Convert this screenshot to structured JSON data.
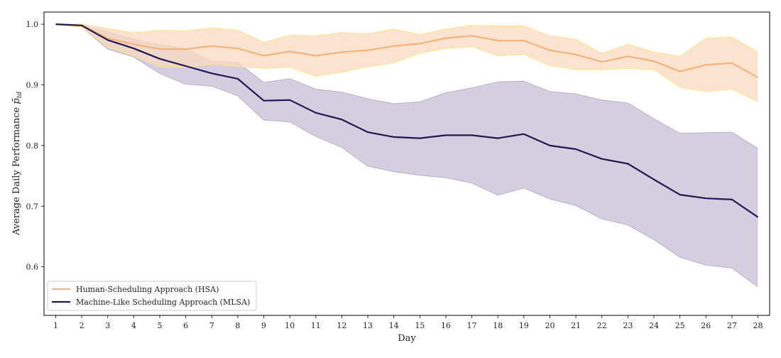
{
  "chart_data": {
    "type": "line",
    "xlabel": "Day",
    "ylabel": "Average Daily Performance",
    "ylabel_math": "p̄",
    "ylabel_sub": "td",
    "x": [
      1,
      2,
      3,
      4,
      5,
      6,
      7,
      8,
      9,
      10,
      11,
      12,
      13,
      14,
      15,
      16,
      17,
      18,
      19,
      20,
      21,
      22,
      23,
      24,
      25,
      26,
      27,
      28
    ],
    "xlim": [
      0.55,
      28.45
    ],
    "ylim": [
      0.52,
      1.02
    ],
    "yticks": [
      0.6,
      0.7,
      0.8,
      0.9,
      1.0
    ],
    "ytick_labels": [
      "0.6",
      "0.7",
      "0.8",
      "0.9",
      "1.0"
    ],
    "grid": false,
    "legend_position": "lower-left",
    "series": [
      {
        "name": "Human-Scheduling Approach (HSA)",
        "color": "#f7b27a",
        "band_fill": "#fbd9bf",
        "band_edge": "#fce48a",
        "values": [
          1.0,
          0.998,
          0.977,
          0.967,
          0.959,
          0.959,
          0.964,
          0.96,
          0.948,
          0.955,
          0.948,
          0.954,
          0.957,
          0.964,
          0.968,
          0.977,
          0.981,
          0.973,
          0.973,
          0.957,
          0.95,
          0.938,
          0.947,
          0.939,
          0.922,
          0.933,
          0.936,
          0.912
        ],
        "lower": [
          1.0,
          0.995,
          0.962,
          0.948,
          0.93,
          0.929,
          0.934,
          0.93,
          0.927,
          0.929,
          0.914,
          0.921,
          0.93,
          0.936,
          0.952,
          0.96,
          0.963,
          0.948,
          0.95,
          0.932,
          0.925,
          0.925,
          0.927,
          0.925,
          0.896,
          0.889,
          0.893,
          0.872
        ],
        "upper": [
          1.0,
          1.0,
          0.993,
          0.986,
          0.99,
          0.989,
          0.994,
          0.99,
          0.97,
          0.982,
          0.981,
          0.986,
          0.984,
          0.992,
          0.983,
          0.992,
          0.998,
          0.997,
          0.997,
          0.981,
          0.975,
          0.952,
          0.967,
          0.954,
          0.947,
          0.977,
          0.979,
          0.954
        ]
      },
      {
        "name": "Machine-Like Scheduling Approach (MLSA)",
        "color": "#231556",
        "band_fill": "#cfc9dc",
        "band_edge": "#b6afcb",
        "values": [
          1.0,
          0.998,
          0.974,
          0.96,
          0.943,
          0.931,
          0.919,
          0.91,
          0.874,
          0.875,
          0.854,
          0.843,
          0.822,
          0.814,
          0.812,
          0.817,
          0.817,
          0.812,
          0.819,
          0.8,
          0.794,
          0.778,
          0.77,
          0.744,
          0.719,
          0.713,
          0.711,
          0.682
        ],
        "lower": [
          1.0,
          0.995,
          0.959,
          0.946,
          0.919,
          0.901,
          0.898,
          0.882,
          0.842,
          0.839,
          0.815,
          0.797,
          0.766,
          0.757,
          0.751,
          0.747,
          0.738,
          0.718,
          0.73,
          0.712,
          0.701,
          0.679,
          0.669,
          0.645,
          0.616,
          0.603,
          0.598,
          0.567
        ],
        "upper": [
          1.0,
          0.999,
          0.987,
          0.975,
          0.966,
          0.96,
          0.939,
          0.937,
          0.904,
          0.91,
          0.893,
          0.888,
          0.877,
          0.869,
          0.872,
          0.887,
          0.895,
          0.905,
          0.906,
          0.889,
          0.885,
          0.875,
          0.87,
          0.844,
          0.82,
          0.821,
          0.822,
          0.795
        ]
      }
    ]
  }
}
